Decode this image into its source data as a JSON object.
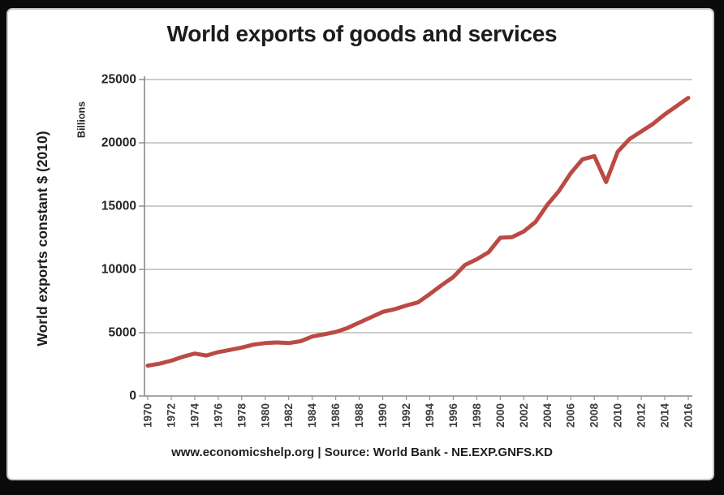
{
  "chart_data": {
    "type": "line",
    "title": "World exports of goods and services",
    "ylabel": "World exports constant $ (2010)",
    "y_units": "Billions",
    "footer": "www.economicshelp.org | Source: World Bank - NE.EXP.GNFS.KD",
    "line_color": "#bb4a45",
    "grid": "horizontal",
    "legend": "none",
    "ylim": [
      0,
      25000
    ],
    "yticks": [
      0,
      5000,
      10000,
      15000,
      20000,
      25000
    ],
    "xticks": [
      1970,
      1972,
      1974,
      1976,
      1978,
      1980,
      1982,
      1984,
      1986,
      1988,
      1990,
      1992,
      1994,
      1996,
      1998,
      2000,
      2002,
      2004,
      2006,
      2008,
      2010,
      2012,
      2014,
      2016
    ],
    "x": [
      1970,
      1971,
      1972,
      1973,
      1974,
      1975,
      1976,
      1977,
      1978,
      1979,
      1980,
      1981,
      1982,
      1983,
      1984,
      1985,
      1986,
      1987,
      1988,
      1989,
      1990,
      1991,
      1992,
      1993,
      1994,
      1995,
      1996,
      1997,
      1998,
      1999,
      2000,
      2001,
      2002,
      2003,
      2004,
      2005,
      2006,
      2007,
      2008,
      2009,
      2010,
      2011,
      2012,
      2013,
      2014,
      2015,
      2016
    ],
    "values": [
      2400,
      2550,
      2790,
      3100,
      3350,
      3200,
      3470,
      3640,
      3830,
      4060,
      4180,
      4230,
      4180,
      4330,
      4700,
      4870,
      5060,
      5370,
      5800,
      6220,
      6650,
      6850,
      7150,
      7400,
      8050,
      8750,
      9400,
      10350,
      10800,
      11350,
      12500,
      12550,
      13000,
      13750,
      15100,
      16200,
      17600,
      18700,
      18950,
      16900,
      19300,
      20300,
      20900,
      21500,
      22250,
      22900,
      23550
    ]
  }
}
